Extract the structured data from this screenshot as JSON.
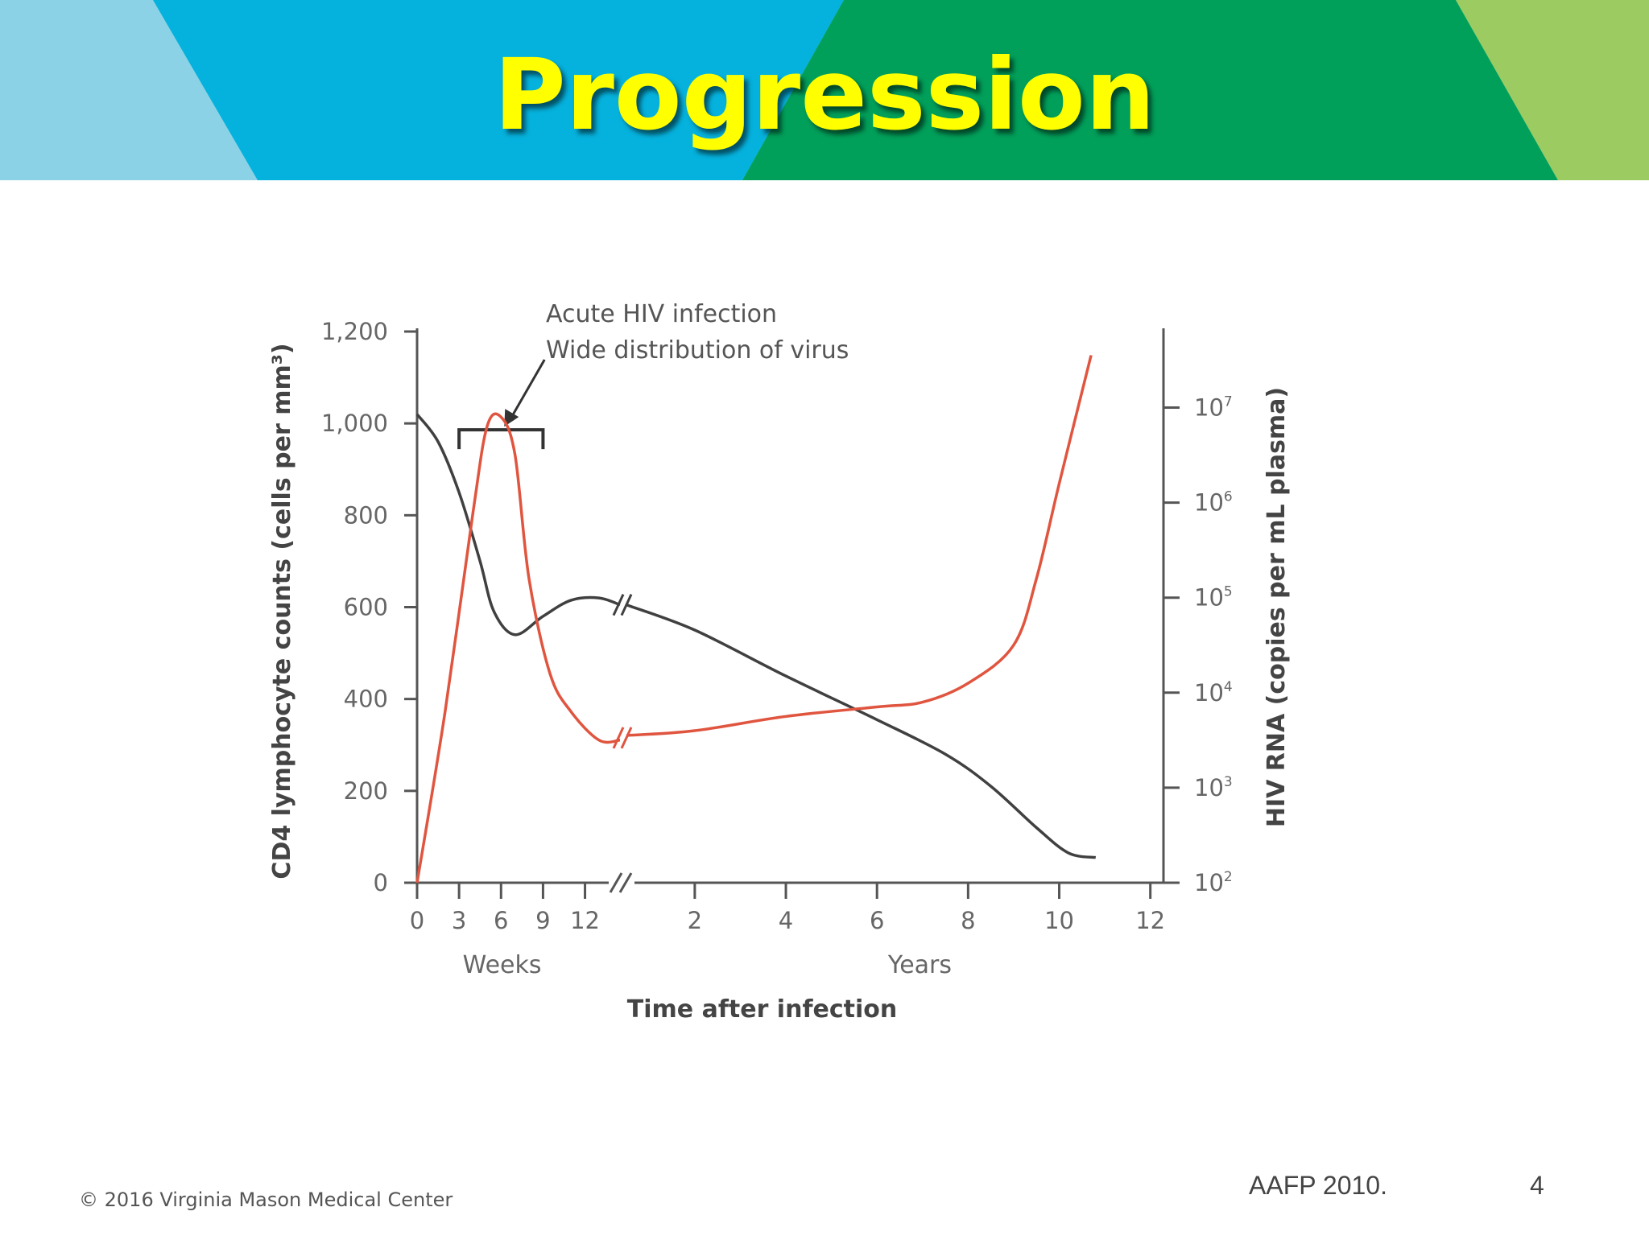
{
  "slide": {
    "title": "Progression",
    "copyright": "© 2016 Virginia Mason Medical Center",
    "source": "AAFP 2010.",
    "page_number": "4"
  },
  "colors": {
    "banner_light_blue": "#8cd2e6",
    "banner_blue": "#05b2dd",
    "banner_green": "#00a05a",
    "banner_light_green": "#9ccb62",
    "title_yellow": "#ffff00",
    "cd4_line": "#404040",
    "rna_line": "#e0553f",
    "axis": "#555555"
  },
  "chart_data": {
    "type": "line",
    "title": "",
    "xlabel": "Time after infection",
    "x_segments": [
      {
        "label": "Weeks",
        "unit": "weeks",
        "ticks": [
          0,
          3,
          6,
          9,
          12
        ],
        "tick_labels": [
          "0",
          "3",
          "6",
          "9",
          "12"
        ],
        "range": [
          0,
          14.5
        ]
      },
      {
        "label": "Years",
        "unit": "years",
        "ticks": [
          2,
          4,
          6,
          8,
          10,
          12
        ],
        "tick_labels": [
          "2",
          "4",
          "6",
          "8",
          "10",
          "12"
        ],
        "range": [
          0.5,
          12.2
        ]
      }
    ],
    "y_left": {
      "label": "CD4 lymphocyte counts (cells per mm³)",
      "ylim": [
        0,
        1200
      ],
      "ticks": [
        0,
        200,
        400,
        600,
        800,
        1000,
        1200
      ],
      "tick_labels": [
        "0",
        "200",
        "400",
        "600",
        "800",
        "1,000",
        "1,200"
      ]
    },
    "y_right": {
      "label": "HIV RNA (copies per mL plasma)",
      "scale": "log10",
      "ylim_exponent": [
        2,
        7.8
      ],
      "ticks_exponent": [
        2,
        3,
        4,
        5,
        6,
        7
      ],
      "tick_labels": [
        {
          "base": "10",
          "exp": "2"
        },
        {
          "base": "10",
          "exp": "3"
        },
        {
          "base": "10",
          "exp": "4"
        },
        {
          "base": "10",
          "exp": "5"
        },
        {
          "base": "10",
          "exp": "6"
        },
        {
          "base": "10",
          "exp": "7"
        }
      ]
    },
    "series": [
      {
        "name": "CD4 lymphocyte count",
        "axis": "left",
        "weeks": [
          [
            0,
            1020
          ],
          [
            1.5,
            960
          ],
          [
            3,
            850
          ],
          [
            4.5,
            700
          ],
          [
            5.5,
            590
          ],
          [
            7,
            540
          ],
          [
            9,
            580
          ],
          [
            11,
            615
          ],
          [
            13,
            620
          ],
          [
            14.5,
            605
          ]
        ],
        "years": [
          [
            0.5,
            605
          ],
          [
            2,
            550
          ],
          [
            4,
            450
          ],
          [
            6,
            355
          ],
          [
            7.5,
            280
          ],
          [
            8.5,
            210
          ],
          [
            9.5,
            120
          ],
          [
            10.2,
            65
          ],
          [
            10.8,
            55
          ]
        ]
      },
      {
        "name": "HIV RNA",
        "axis": "right",
        "weeks": [
          [
            0,
            2.0
          ],
          [
            2,
            3.8
          ],
          [
            4,
            5.9
          ],
          [
            5,
            6.8
          ],
          [
            6,
            6.9
          ],
          [
            7,
            6.5
          ],
          [
            8,
            5.2
          ],
          [
            9.5,
            4.2
          ],
          [
            11,
            3.8
          ],
          [
            13,
            3.5
          ],
          [
            14.5,
            3.5
          ]
        ],
        "years": [
          [
            0.5,
            3.55
          ],
          [
            2,
            3.6
          ],
          [
            4,
            3.75
          ],
          [
            6,
            3.85
          ],
          [
            7,
            3.9
          ],
          [
            8,
            4.1
          ],
          [
            9,
            4.5
          ],
          [
            9.5,
            5.2
          ],
          [
            10,
            6.2
          ],
          [
            10.7,
            7.55
          ]
        ]
      }
    ],
    "annotations": [
      {
        "text_lines": [
          "Acute HIV infection",
          "Wide distribution of virus"
        ],
        "target": "weeks 3–9 bracket"
      }
    ]
  }
}
